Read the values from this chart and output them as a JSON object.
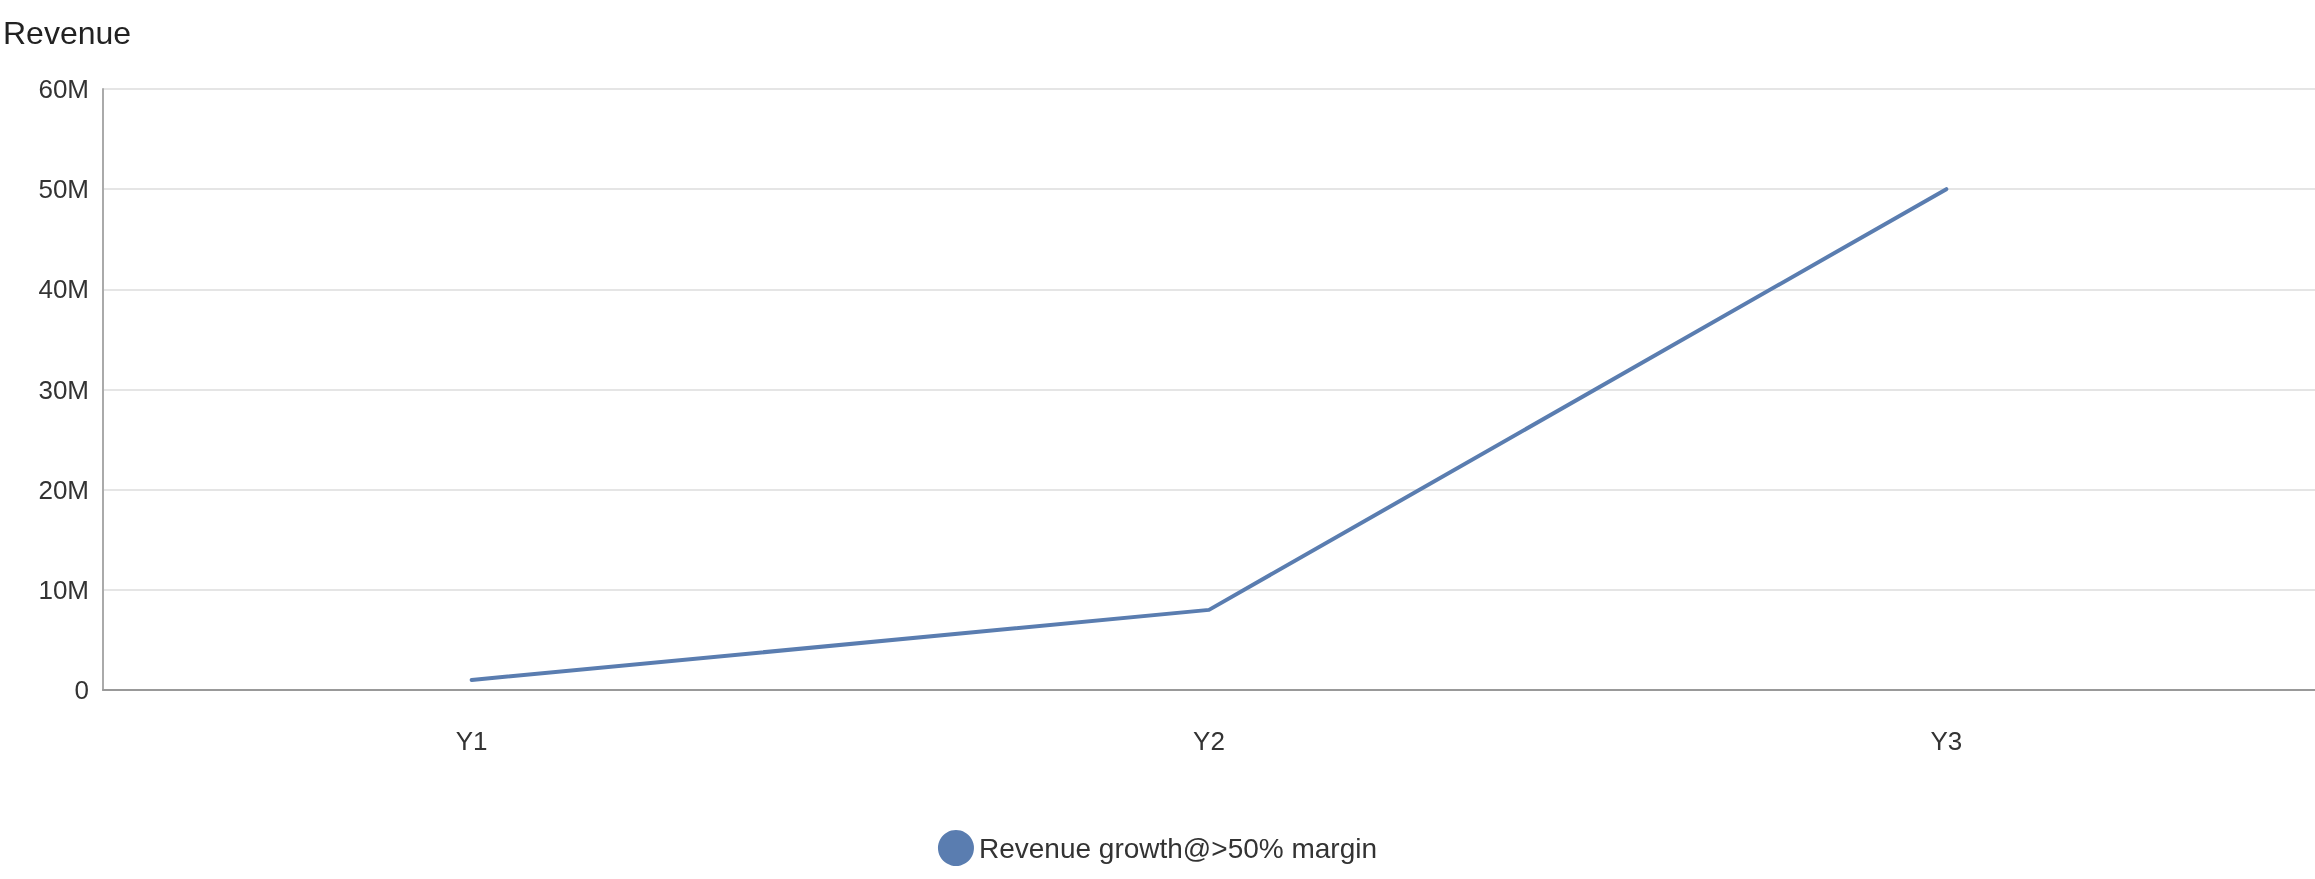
{
  "chart_data": {
    "type": "line",
    "ylabel": "Revenue",
    "categories": [
      "Y1",
      "Y2",
      "Y3"
    ],
    "series": [
      {
        "name": "Revenue growth@>50% margin",
        "color": "#5a7db0",
        "values": [
          1000000,
          8000000,
          50000000
        ]
      }
    ],
    "ylim": [
      0,
      60000000
    ],
    "yticks": [
      {
        "value": 0,
        "label": "0"
      },
      {
        "value": 10000000,
        "label": "10M"
      },
      {
        "value": 20000000,
        "label": "20M"
      },
      {
        "value": 30000000,
        "label": "30M"
      },
      {
        "value": 40000000,
        "label": "40M"
      },
      {
        "value": 50000000,
        "label": "50M"
      },
      {
        "value": 60000000,
        "label": "60M"
      }
    ],
    "grid": "y",
    "legend": "bottom",
    "marker": "none",
    "line_style": "solid"
  }
}
